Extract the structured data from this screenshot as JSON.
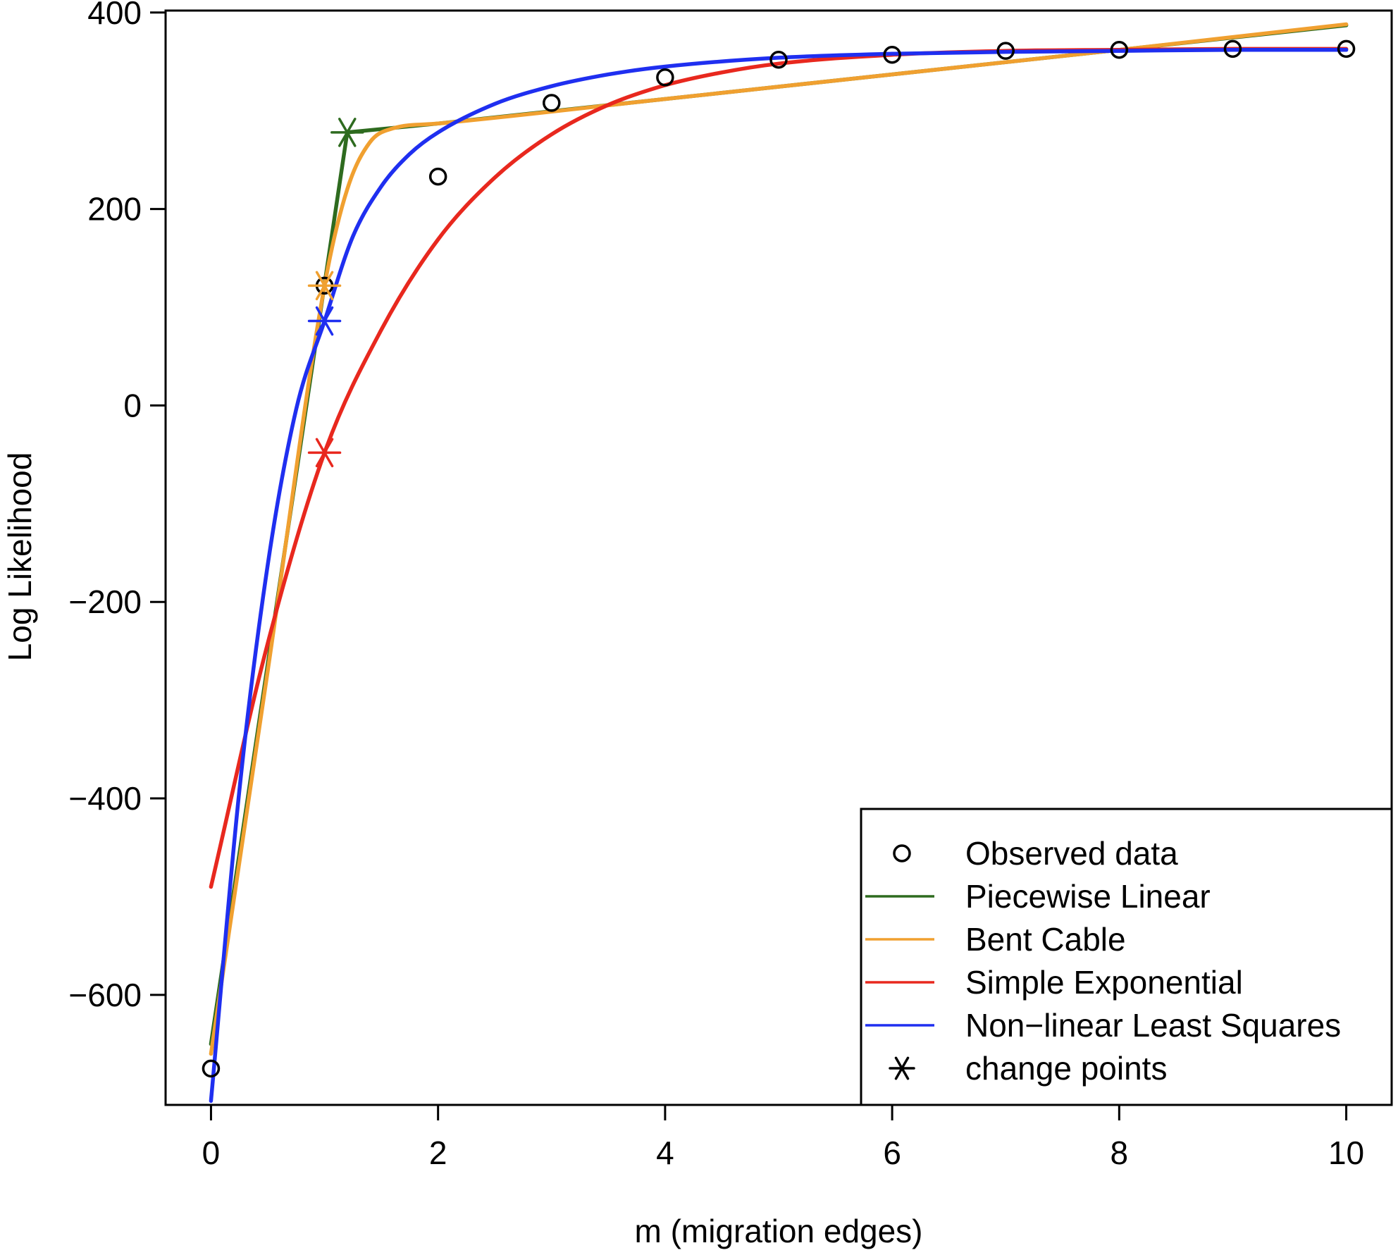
{
  "chart_data": {
    "type": "line",
    "title": "",
    "xlabel": "m (migration edges)",
    "ylabel": "Log Likelihood",
    "xlim": [
      -0.4,
      10.4
    ],
    "ylim": [
      -712,
      402
    ],
    "xticks": [
      0,
      2,
      4,
      6,
      8,
      10
    ],
    "yticks": [
      -600,
      -400,
      -200,
      0,
      200,
      400
    ],
    "xtick_labels": [
      "0",
      "2",
      "4",
      "6",
      "8",
      "10"
    ],
    "ytick_labels": [
      "−600",
      "−400",
      "−200",
      "0",
      "200",
      "400"
    ],
    "grid": false,
    "legend": {
      "position": "bottom-right",
      "entries": [
        {
          "label": "Observed data",
          "marker": "circle",
          "color": "#000000"
        },
        {
          "label": "Piecewise Linear",
          "marker": "line",
          "color": "#2e6b1f"
        },
        {
          "label": "Bent Cable",
          "marker": "line",
          "color": "#f0a030"
        },
        {
          "label": "Simple Exponential",
          "marker": "line",
          "color": "#e8281e"
        },
        {
          "label": "Non−linear Least Squares",
          "marker": "line",
          "color": "#1f2ff0"
        },
        {
          "label": "change points",
          "marker": "asterisk",
          "color": "#000000"
        }
      ]
    },
    "observed": {
      "name": "Observed data",
      "x": [
        0,
        1,
        2,
        3,
        4,
        5,
        6,
        7,
        8,
        9,
        10
      ],
      "y": [
        -675,
        122,
        233,
        308,
        334,
        352,
        357,
        361,
        362,
        363,
        363
      ]
    },
    "series": [
      {
        "name": "Piecewise Linear",
        "color": "#2e6b1f",
        "x": [
          0,
          1.2,
          2,
          4,
          6,
          8,
          10
        ],
        "y": [
          -650,
          278,
          287,
          312,
          337,
          362,
          387
        ]
      },
      {
        "name": "Bent Cable",
        "color": "#f0a030",
        "x": [
          0,
          0.5,
          1.0,
          1.2,
          1.4,
          1.6,
          2,
          4,
          6,
          8,
          10
        ],
        "y": [
          -660,
          -270,
          122,
          220,
          268,
          282,
          287,
          312,
          337,
          362,
          388
        ]
      },
      {
        "name": "Simple Exponential",
        "color": "#e8281e",
        "x": [
          0,
          0.5,
          1,
          1.5,
          2,
          2.5,
          3,
          3.5,
          4,
          4.5,
          5,
          6,
          7,
          8,
          9,
          10
        ],
        "y": [
          -490,
          -242,
          -48,
          77,
          169,
          232,
          276,
          306,
          326,
          339,
          348,
          357,
          361,
          362,
          363,
          363
        ],
        "change_point": {
          "x": 1.0,
          "y": -48
        }
      },
      {
        "name": "Non−linear Least Squares",
        "color": "#1f2ff0",
        "x": [
          0,
          0.25,
          0.5,
          0.75,
          1,
          1.25,
          1.5,
          1.75,
          2,
          2.5,
          3,
          3.5,
          4,
          5,
          6,
          7,
          8,
          9,
          10
        ],
        "y": [
          -708,
          -392,
          -162,
          -4,
          86,
          172,
          223,
          256,
          278,
          307,
          325,
          337,
          345,
          354,
          358,
          360,
          361,
          362,
          362
        ],
        "change_point": {
          "x": 1.0,
          "y": 86
        }
      }
    ],
    "change_points": [
      {
        "series": "Piecewise Linear",
        "x": 1.2,
        "y": 278
      },
      {
        "series": "Bent Cable",
        "x": 1.0,
        "y": 122
      },
      {
        "series": "Simple Exponential",
        "x": 1.0,
        "y": -48
      },
      {
        "series": "Non−linear Least Squares",
        "x": 1.0,
        "y": 86
      }
    ]
  }
}
